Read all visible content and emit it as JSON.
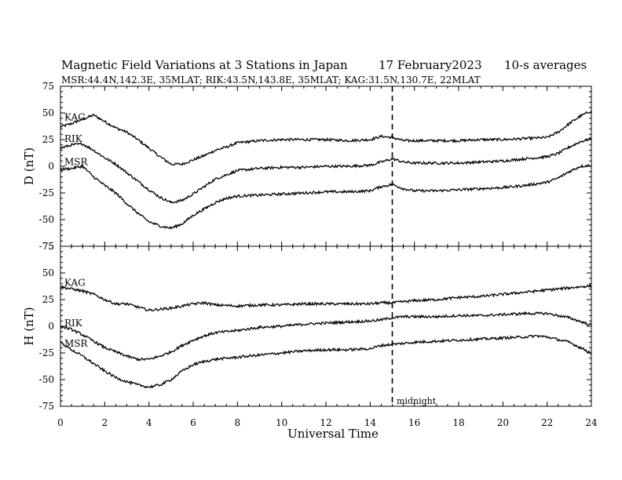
{
  "header": {
    "title": "Magnetic Field Variations at 3 Stations in Japan",
    "date": "17 February2023",
    "averaging": "10-s averages",
    "stations": "MSR:44.4N,142.3E, 35MLAT;  RIK:43.5N,143.8E, 35MLAT;  KAG:31.5N,130.7E, 22MLAT"
  },
  "chart_data": [
    {
      "type": "line",
      "panel": "D",
      "ylabel": "D (nT)",
      "ylim": [
        -75,
        75
      ],
      "yticks": [
        "75",
        "50",
        "25",
        "0",
        "-25",
        "-50",
        "-75"
      ],
      "xlim": [
        0,
        24
      ],
      "series": [
        {
          "name": "KAG",
          "x": [
            0,
            0.5,
            1,
            1.5,
            2,
            2.5,
            3,
            3.5,
            4,
            4.5,
            5,
            5.5,
            6,
            6.5,
            7,
            7.5,
            8,
            9,
            10,
            11,
            12,
            13,
            14,
            14.5,
            15,
            15.5,
            16,
            17,
            18,
            19,
            20,
            21,
            22,
            22.5,
            23,
            23.5,
            24
          ],
          "y": [
            37,
            40,
            44,
            48,
            42,
            36,
            32,
            25,
            17,
            9,
            2,
            2,
            6,
            10,
            15,
            18,
            22,
            24,
            25,
            25,
            25,
            24,
            25,
            28,
            27,
            24,
            24,
            24,
            24,
            25,
            25,
            26,
            27,
            32,
            40,
            47,
            52
          ]
        },
        {
          "name": "RIK",
          "x": [
            0,
            0.5,
            1,
            1.5,
            2,
            2.5,
            3,
            3.5,
            4,
            4.5,
            5,
            5.5,
            6,
            6.5,
            7,
            7.5,
            8,
            9,
            10,
            11,
            12,
            13,
            14,
            14.5,
            15,
            15.5,
            16,
            17,
            18,
            19,
            20,
            21,
            22,
            22.5,
            23,
            23.5,
            24
          ],
          "y": [
            17,
            20,
            21,
            15,
            8,
            2,
            -6,
            -14,
            -22,
            -29,
            -34,
            -32,
            -26,
            -19,
            -12,
            -8,
            -4,
            -2,
            -1,
            -1,
            0,
            0,
            1,
            4,
            7,
            4,
            3,
            3,
            3,
            4,
            5,
            7,
            9,
            12,
            18,
            23,
            26
          ]
        },
        {
          "name": "MSR",
          "x": [
            0,
            0.5,
            1,
            1.5,
            2,
            2.5,
            3,
            3.5,
            4,
            4.5,
            5,
            5.5,
            6,
            6.5,
            7,
            7.5,
            8,
            9,
            10,
            11,
            12,
            13,
            14,
            14.5,
            15,
            15.5,
            16,
            17,
            18,
            19,
            20,
            21,
            22,
            22.5,
            23,
            23.5,
            24
          ],
          "y": [
            -3,
            -2,
            0,
            -10,
            -18,
            -25,
            -35,
            -44,
            -52,
            -56,
            -58,
            -54,
            -46,
            -40,
            -34,
            -30,
            -28,
            -27,
            -26,
            -25,
            -24,
            -24,
            -23,
            -19,
            -17,
            -21,
            -23,
            -23,
            -22,
            -21,
            -20,
            -18,
            -15,
            -11,
            -5,
            0,
            1
          ]
        }
      ]
    },
    {
      "type": "line",
      "panel": "H",
      "ylabel": "H (nT)",
      "ylim": [
        -75,
        75
      ],
      "yticks": [
        "75",
        "50",
        "25",
        "0",
        "-25",
        "-50",
        "-75"
      ],
      "xlim": [
        0,
        24
      ],
      "xlabel": "Universal Time",
      "xticks": [
        "0",
        "2",
        "4",
        "6",
        "8",
        "10",
        "12",
        "14",
        "16",
        "18",
        "20",
        "22",
        "24"
      ],
      "series": [
        {
          "name": "KAG",
          "x": [
            0,
            0.5,
            1,
            1.5,
            2,
            2.5,
            3,
            3.5,
            4,
            4.5,
            5,
            5.5,
            6,
            6.5,
            7,
            8,
            9,
            10,
            11,
            12,
            13,
            14,
            14.5,
            15,
            15.5,
            16,
            17,
            18,
            19,
            20,
            21,
            22,
            23,
            24
          ],
          "y": [
            37,
            35,
            33,
            30,
            25,
            21,
            21,
            18,
            15,
            16,
            17,
            19,
            21,
            22,
            20,
            19,
            20,
            20,
            21,
            21,
            21,
            21,
            22,
            22,
            23,
            24,
            25,
            27,
            28,
            30,
            32,
            34,
            36,
            38
          ]
        },
        {
          "name": "RIK",
          "x": [
            0,
            0.5,
            1,
            1.5,
            2,
            2.5,
            3,
            3.5,
            4,
            4.5,
            5,
            5.5,
            6,
            6.5,
            7,
            8,
            9,
            10,
            11,
            12,
            13,
            14,
            14.5,
            15,
            15.5,
            16,
            17,
            18,
            19,
            20,
            21,
            22,
            23,
            24
          ],
          "y": [
            0,
            -3,
            -8,
            -14,
            -20,
            -24,
            -28,
            -31,
            -31,
            -28,
            -24,
            -18,
            -13,
            -9,
            -6,
            -4,
            -1,
            0,
            2,
            3,
            4,
            5,
            6,
            8,
            9,
            9,
            9,
            10,
            10,
            11,
            12,
            12,
            8,
            1
          ]
        },
        {
          "name": "MSR",
          "x": [
            0,
            0.5,
            1,
            1.5,
            2,
            2.5,
            3,
            3.5,
            4,
            4.5,
            5,
            5.5,
            6,
            6.5,
            7,
            8,
            9,
            10,
            11,
            12,
            13,
            14,
            14.5,
            15,
            15.5,
            16,
            17,
            18,
            19,
            20,
            21,
            21.5,
            22,
            23,
            24
          ],
          "y": [
            -15,
            -22,
            -28,
            -35,
            -42,
            -48,
            -52,
            -55,
            -57,
            -55,
            -50,
            -42,
            -36,
            -33,
            -31,
            -29,
            -27,
            -25,
            -23,
            -22,
            -22,
            -21,
            -18,
            -17,
            -16,
            -15,
            -14,
            -13,
            -12,
            -11,
            -10,
            -9,
            -10,
            -15,
            -25
          ]
        }
      ]
    }
  ],
  "annotations": {
    "midnight_label": "midnight",
    "midnight_ut": 15
  }
}
